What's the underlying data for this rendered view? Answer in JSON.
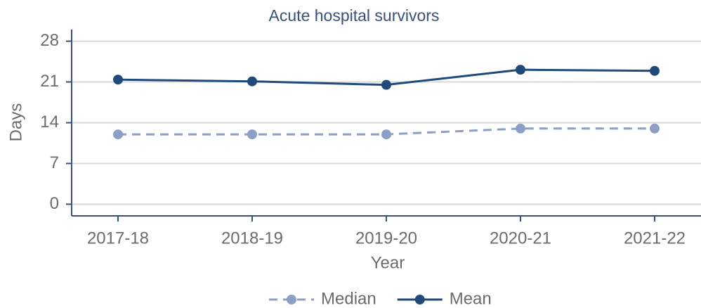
{
  "chart_data": {
    "type": "line",
    "title": "Acute hospital survivors",
    "x_label": "Year",
    "y_label": "Days",
    "categories": [
      "2017-18",
      "2018-19",
      "2019-20",
      "2020-21",
      "2021-22"
    ],
    "series": [
      {
        "name": "Median",
        "color": "#8e9fc6",
        "dashed": true,
        "values": [
          12,
          12,
          12,
          13,
          13
        ]
      },
      {
        "name": "Mean",
        "color": "#1f4a7a",
        "dashed": false,
        "values": [
          21.4,
          21.1,
          20.5,
          23.1,
          22.9
        ]
      }
    ],
    "ylim": [
      -2,
      30
    ],
    "yticks": [
      0,
      7,
      14,
      21,
      28
    ],
    "grid": true,
    "legend": "bottom"
  }
}
